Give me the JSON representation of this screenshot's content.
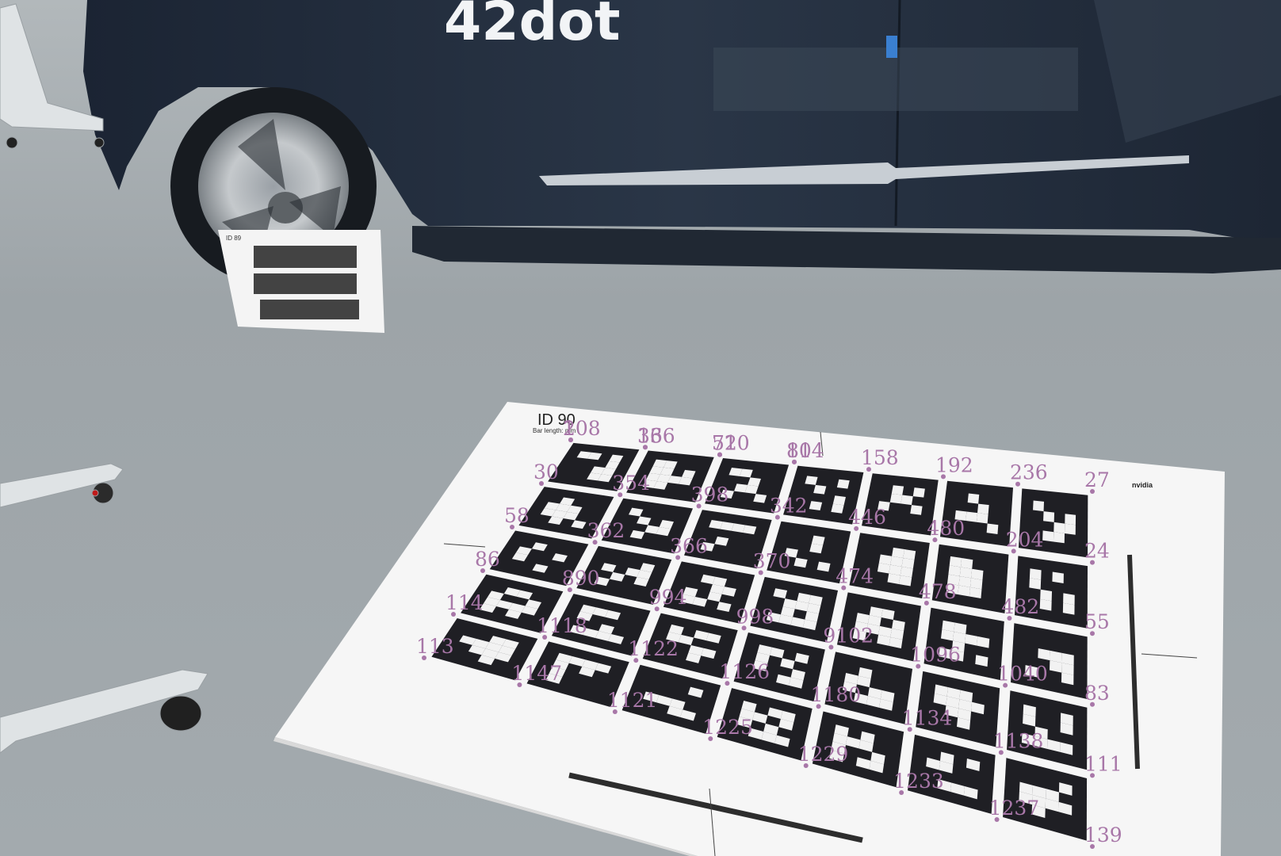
{
  "vehicle": {
    "logo_text": "42dot"
  },
  "board": {
    "title": "ID 90",
    "subtitle": "Bar length:           mm",
    "brand_text": "nvidia",
    "rows": 5,
    "cols": 7
  },
  "small_board": {
    "title": "ID 89"
  },
  "corner_labels": [
    {
      "text": "2"
    },
    {
      "text": "36"
    },
    {
      "text": "710"
    },
    {
      "text": "114"
    },
    {
      "text": "158"
    },
    {
      "text": "192"
    },
    {
      "text": "236"
    },
    {
      "text": "27"
    },
    {
      "text": "30"
    },
    {
      "text": "354"
    },
    {
      "text": "398"
    },
    {
      "text": "342"
    },
    {
      "text": "446"
    },
    {
      "text": "480"
    },
    {
      "text": "204"
    },
    {
      "text": "24"
    },
    {
      "text": "58"
    },
    {
      "text": "362"
    },
    {
      "text": "366"
    },
    {
      "text": "370"
    },
    {
      "text": "474"
    },
    {
      "text": "478"
    },
    {
      "text": "482"
    },
    {
      "text": "55"
    },
    {
      "text": "86"
    },
    {
      "text": "890"
    },
    {
      "text": "994"
    },
    {
      "text": "998"
    },
    {
      "text": "9102"
    },
    {
      "text": "1096"
    },
    {
      "text": "1040"
    },
    {
      "text": "83"
    },
    {
      "text": "114"
    },
    {
      "text": "1118"
    },
    {
      "text": "1122"
    },
    {
      "text": "1126"
    },
    {
      "text": "1180"
    },
    {
      "text": "1134"
    },
    {
      "text": "1138"
    },
    {
      "text": "111"
    },
    {
      "text": "113"
    },
    {
      "text": "1147"
    },
    {
      "text": "1121"
    },
    {
      "text": "1225"
    },
    {
      "text": "1229"
    },
    {
      "text": "1233"
    },
    {
      "text": "1237"
    },
    {
      "text": "139"
    },
    {
      "text": "108"
    },
    {
      "text": "136"
    },
    {
      "text": "52"
    },
    {
      "text": "80"
    }
  ]
}
